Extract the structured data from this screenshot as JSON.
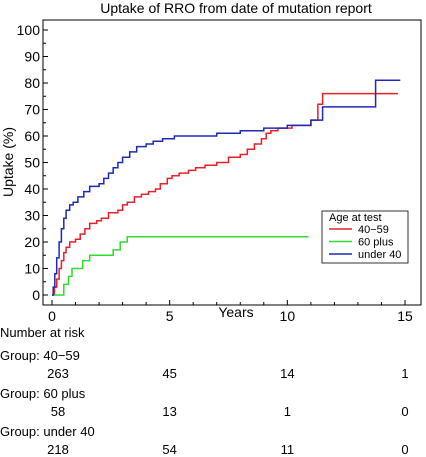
{
  "chart_data": {
    "type": "line",
    "step": true,
    "title": "Uptake of RRO from date of mutation report",
    "xlabel": "Years",
    "ylabel": "Uptake (%)",
    "xlim": [
      0,
      15
    ],
    "ylim": [
      0,
      100
    ],
    "xticks": [
      "0",
      "5",
      "10",
      "15"
    ],
    "yticks": [
      "0",
      "10",
      "20",
      "30",
      "40",
      "50",
      "60",
      "70",
      "80",
      "90",
      "100"
    ],
    "grid": false,
    "legend": {
      "title": "Age at test",
      "position": "right-middle",
      "entries": [
        "40−59",
        "60 plus",
        "under 40"
      ]
    },
    "series": [
      {
        "name": "40−59",
        "color": "#e8202a",
        "points": [
          [
            0,
            0
          ],
          [
            0.1,
            3
          ],
          [
            0.2,
            6
          ],
          [
            0.3,
            10
          ],
          [
            0.4,
            13
          ],
          [
            0.5,
            16
          ],
          [
            0.6,
            18
          ],
          [
            0.75,
            20
          ],
          [
            1.0,
            21
          ],
          [
            1.2,
            23
          ],
          [
            1.4,
            25
          ],
          [
            1.6,
            27
          ],
          [
            1.9,
            28
          ],
          [
            2.1,
            29
          ],
          [
            2.4,
            31
          ],
          [
            2.8,
            32
          ],
          [
            3.0,
            34
          ],
          [
            3.2,
            35
          ],
          [
            3.5,
            37
          ],
          [
            3.8,
            38
          ],
          [
            4.1,
            39
          ],
          [
            4.4,
            40
          ],
          [
            4.6,
            42
          ],
          [
            4.9,
            44
          ],
          [
            5.1,
            45
          ],
          [
            5.4,
            46
          ],
          [
            5.8,
            47
          ],
          [
            6.1,
            48
          ],
          [
            6.5,
            49
          ],
          [
            7.0,
            50
          ],
          [
            7.5,
            52
          ],
          [
            8.0,
            53
          ],
          [
            8.3,
            55
          ],
          [
            8.6,
            57
          ],
          [
            8.9,
            59
          ],
          [
            9.1,
            61
          ],
          [
            9.3,
            62
          ],
          [
            9.6,
            63
          ],
          [
            10.2,
            64
          ],
          [
            11.0,
            66
          ],
          [
            11.3,
            72
          ],
          [
            11.5,
            76
          ],
          [
            14.7,
            76
          ]
        ]
      },
      {
        "name": "60 plus",
        "color": "#2fdc2f",
        "points": [
          [
            0,
            0
          ],
          [
            0.5,
            4
          ],
          [
            0.7,
            7
          ],
          [
            0.85,
            10
          ],
          [
            1.3,
            13
          ],
          [
            1.6,
            15
          ],
          [
            2.6,
            17
          ],
          [
            2.9,
            20
          ],
          [
            3.2,
            22
          ],
          [
            10.9,
            22
          ]
        ]
      },
      {
        "name": "under 40",
        "color": "#1c2bb5",
        "points": [
          [
            0,
            0
          ],
          [
            0.05,
            3
          ],
          [
            0.12,
            8
          ],
          [
            0.2,
            14
          ],
          [
            0.3,
            20
          ],
          [
            0.4,
            25
          ],
          [
            0.5,
            29
          ],
          [
            0.6,
            32
          ],
          [
            0.75,
            34
          ],
          [
            0.9,
            35
          ],
          [
            1.1,
            37
          ],
          [
            1.35,
            39
          ],
          [
            1.6,
            41
          ],
          [
            2.0,
            42
          ],
          [
            2.2,
            44
          ],
          [
            2.4,
            46
          ],
          [
            2.6,
            48
          ],
          [
            2.8,
            50
          ],
          [
            3.0,
            52
          ],
          [
            3.3,
            54
          ],
          [
            3.6,
            56
          ],
          [
            4.0,
            57
          ],
          [
            4.3,
            58
          ],
          [
            4.7,
            59
          ],
          [
            5.2,
            60
          ],
          [
            6.0,
            60
          ],
          [
            7.0,
            61
          ],
          [
            8.0,
            62
          ],
          [
            9.0,
            63
          ],
          [
            10.0,
            64
          ],
          [
            11.0,
            66
          ],
          [
            11.5,
            71
          ],
          [
            13.7,
            71
          ],
          [
            13.75,
            81
          ],
          [
            14.8,
            81
          ]
        ]
      }
    ]
  },
  "risk_table": {
    "heading": "Number at risk",
    "groups": [
      {
        "label": "Group: 40−59",
        "values": [
          "263",
          "45",
          "14",
          "1"
        ]
      },
      {
        "label": "Group: 60 plus",
        "values": [
          "58",
          "13",
          "1",
          "0"
        ]
      },
      {
        "label": "Group: under 40",
        "values": [
          "218",
          "54",
          "11",
          "0"
        ]
      }
    ]
  }
}
